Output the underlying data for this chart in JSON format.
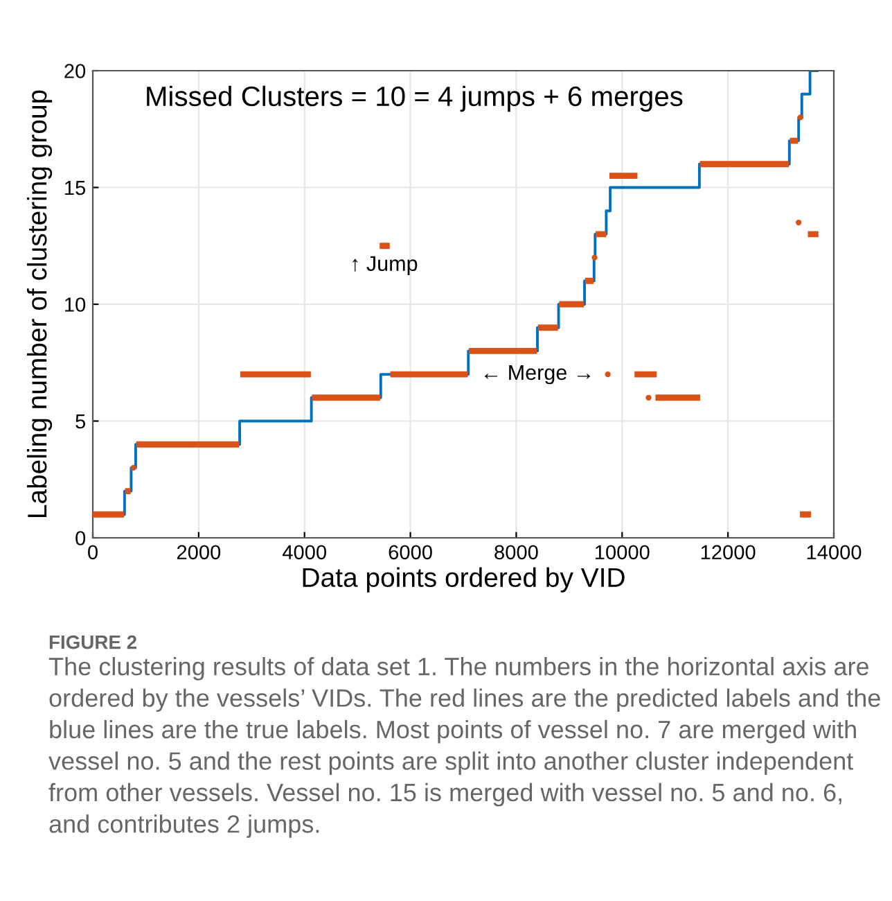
{
  "chart_data": {
    "type": "line",
    "title": "Missed Clusters = 10 = 4 jumps + 6 merges",
    "xlabel": "Data points ordered by VID",
    "ylabel": "Labeling number of clustering group",
    "xlim": [
      0,
      14000
    ],
    "xticks": [
      0,
      2000,
      4000,
      6000,
      8000,
      10000,
      12000,
      14000
    ],
    "ylim": [
      0,
      20
    ],
    "yticks": [
      0,
      5,
      10,
      15,
      20
    ],
    "grid": true,
    "series": [
      {
        "type": "step",
        "color": "#0072bd",
        "x": [
          0,
          600,
          725,
          810,
          2775,
          4130,
          5440,
          7095,
          8400,
          8800,
          9290,
          9470,
          9490,
          9700,
          9775,
          11460,
          13160,
          13335,
          13395,
          13550,
          13685
        ],
        "values": [
          1,
          2,
          3,
          4,
          5,
          6,
          7,
          8,
          9,
          10,
          11,
          12,
          13,
          14,
          15,
          16,
          17,
          18,
          19,
          20,
          20
        ]
      },
      {
        "color": "#d95319",
        "x": [
          0,
          590,
          null,
          610,
          715,
          null,
          820,
          2765,
          null,
          2785,
          4120,
          null,
          4140,
          5430,
          null,
          5420,
          5610,
          null,
          5620,
          7085,
          null,
          7105,
          8390,
          null,
          8410,
          8790,
          null,
          8810,
          9280,
          null,
          9300,
          9460,
          null,
          9500,
          9700,
          null,
          9760,
          10290,
          null,
          10235,
          10655,
          null,
          10630,
          11475,
          null,
          11470,
          13150,
          null,
          13170,
          13325,
          null,
          13510,
          13710,
          null,
          13360,
          13570
        ],
        "values": [
          1,
          1,
          null,
          2,
          2,
          null,
          4,
          4,
          null,
          7,
          7,
          null,
          6,
          6,
          null,
          12.5,
          12.5,
          null,
          7,
          7,
          null,
          8,
          8,
          null,
          9,
          9,
          null,
          10,
          10,
          null,
          11,
          11,
          null,
          13,
          13,
          null,
          15.5,
          15.5,
          null,
          7,
          7,
          null,
          6,
          6,
          null,
          16,
          16,
          null,
          17,
          17,
          null,
          13,
          13,
          null,
          1,
          1
        ]
      },
      {
        "type": "scatter",
        "marker": "circle",
        "color": "#d95319",
        "x": [
          767,
          9480,
          9730,
          10500,
          13335,
          13370
        ],
        "values": [
          3,
          12,
          7,
          6,
          13.5,
          18
        ]
      }
    ],
    "annotations": [
      {
        "text": "↑ Jump",
        "x": 5500,
        "y": 12.5
      },
      "← Merge →",
      "FIGURE 2",
      "The clustering results of data set 1. The numbers in the horizontal axis are ordered by the vessels’ VIDs. The red lines are the predicted labels and the blue lines are the true labels. Most points of vessel no. 7 are merged with vessel no. 5 and the rest points are split into another cluster independent from other vessels. Vessel no. 15 is merged with vessel no. 5 and no. 6, and contributes 2 jumps."
    ]
  }
}
